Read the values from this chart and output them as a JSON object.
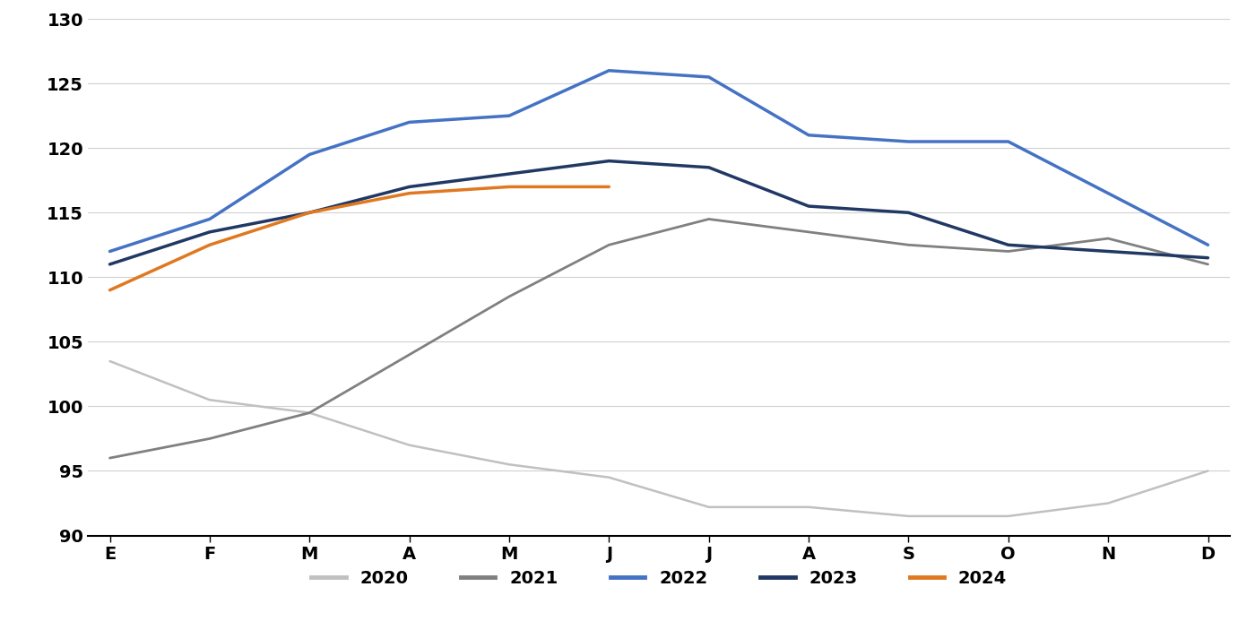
{
  "months": [
    "E",
    "F",
    "M",
    "A",
    "M",
    "J",
    "J",
    "A",
    "S",
    "O",
    "N",
    "D"
  ],
  "series": {
    "2020": [
      103.5,
      100.5,
      99.5,
      97.0,
      95.5,
      94.5,
      92.2,
      92.2,
      91.5,
      91.5,
      92.5,
      95.0
    ],
    "2021": [
      96.0,
      97.5,
      99.5,
      104.0,
      108.5,
      112.5,
      114.5,
      113.5,
      112.5,
      112.0,
      113.0,
      111.0
    ],
    "2022": [
      112.0,
      114.5,
      119.5,
      122.0,
      122.5,
      126.0,
      125.5,
      121.0,
      120.5,
      120.5,
      116.5,
      112.5
    ],
    "2023": [
      111.0,
      113.5,
      115.0,
      117.0,
      118.0,
      119.0,
      118.5,
      115.5,
      115.0,
      112.5,
      112.0,
      111.5
    ],
    "2024": [
      109.0,
      112.5,
      115.0,
      116.5,
      117.0,
      117.0,
      null,
      null,
      null,
      null,
      null,
      null
    ]
  },
  "series_order": [
    "2020",
    "2021",
    "2022",
    "2023",
    "2024"
  ],
  "colors": {
    "2020": "#c0c0c0",
    "2021": "#808080",
    "2022": "#4472c4",
    "2023": "#203864",
    "2024": "#e07820"
  },
  "linewidths": {
    "2020": 1.8,
    "2021": 2.0,
    "2022": 2.5,
    "2023": 2.5,
    "2024": 2.5
  },
  "ylim": [
    90,
    130
  ],
  "yticks": [
    90,
    95,
    100,
    105,
    110,
    115,
    120,
    125,
    130
  ],
  "background_color": "#ffffff",
  "grid_color": "#d0d0d0",
  "legend_labels": [
    "2020",
    "2021",
    "2022",
    "2023",
    "2024"
  ],
  "tick_fontsize": 14,
  "legend_fontsize": 14
}
